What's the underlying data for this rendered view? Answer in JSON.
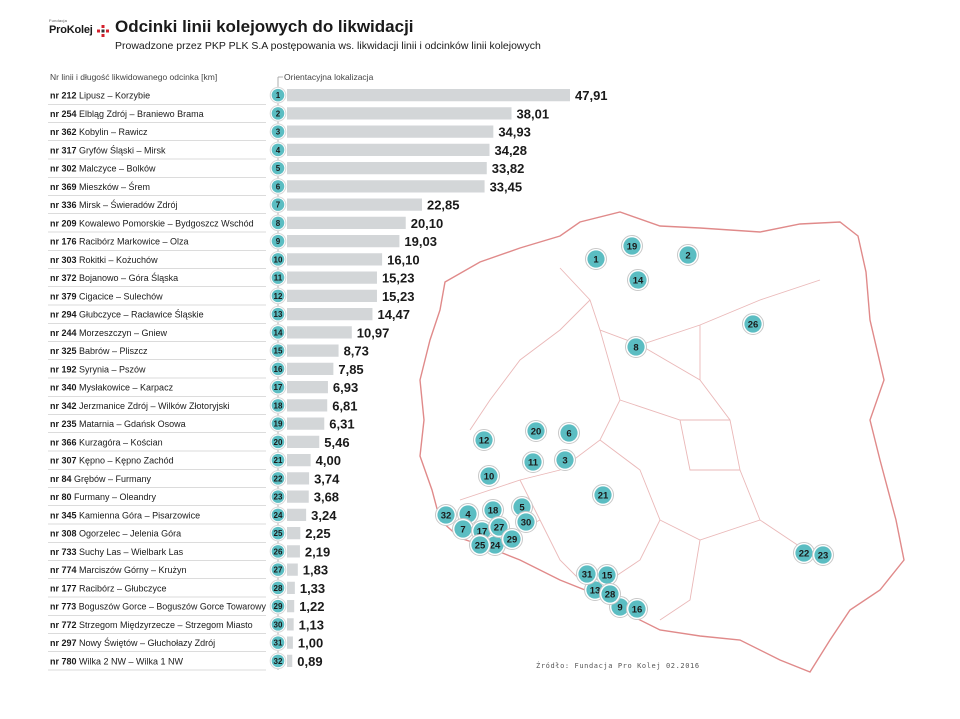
{
  "header": {
    "logo_small": "Fundacja",
    "logo_brand": "ProKolej",
    "title": "Odcinki linii kolejowych do likwidacji",
    "subtitle": "Prowadzone przez PKP PLK S.A postępowania ws. likwidacji linii i odcinków linii kolejowych"
  },
  "columns": {
    "left": "Nr linii i długość likwidowanego odcinka [km]",
    "right": "Orientacyjna lokalizacja"
  },
  "source": "Źródło: Fundacja Pro Kolej 02.2016",
  "colors": {
    "bar": "#d3d6d8",
    "marker_fill": "#5bbdc2",
    "marker_ring": "#d9d9d9",
    "map_outline": "#e08a8a",
    "brand_red": "#d4202c"
  },
  "chart_data": {
    "type": "bar",
    "orientation": "horizontal",
    "unit": "km",
    "xlim": [
      0,
      47.91
    ],
    "categories": [
      {
        "num": "nr 212",
        "name": "Lipusz – Korzybie"
      },
      {
        "num": "nr 254",
        "name": "Elbląg Zdrój – Braniewo Brama"
      },
      {
        "num": "nr 362",
        "name": "Kobylin – Rawicz"
      },
      {
        "num": "nr 317",
        "name": "Gryfów Śląski – Mirsk"
      },
      {
        "num": "nr 302",
        "name": "Malczyce – Bolków"
      },
      {
        "num": "nr 369",
        "name": "Mieszków – Śrem"
      },
      {
        "num": "nr 336",
        "name": "Mirsk – Świeradów Zdrój"
      },
      {
        "num": "nr 209",
        "name": "Kowalewo Pomorskie – Bydgoszcz Wschód"
      },
      {
        "num": "nr 176",
        "name": "Racibórz Markowice – Olza"
      },
      {
        "num": "nr 303",
        "name": "Rokitki – Kożuchów"
      },
      {
        "num": "nr 372",
        "name": "Bojanowo – Góra Śląska"
      },
      {
        "num": "nr 379",
        "name": "Cigacice – Sulechów"
      },
      {
        "num": "nr 294",
        "name": "Głubczyce – Racławice Śląskie"
      },
      {
        "num": "nr 244",
        "name": "Morzeszczyn – Gniew"
      },
      {
        "num": "nr 325",
        "name": "Babrów – Pliszcz"
      },
      {
        "num": "nr 192",
        "name": "Syrynia – Pszów"
      },
      {
        "num": "nr 340",
        "name": "Mysłakowice – Karpacz"
      },
      {
        "num": "nr 342",
        "name": "Jerzmanice Zdrój – Wilków Złotoryjski"
      },
      {
        "num": "nr 235",
        "name": "Matarnia – Gdańsk Osowa"
      },
      {
        "num": "nr 366",
        "name": "Kurzagóra – Kościan"
      },
      {
        "num": "nr 307",
        "name": "Kępno – Kępno Zachód"
      },
      {
        "num": "nr 84",
        "name": "Grębów – Furmany"
      },
      {
        "num": "nr 80",
        "name": "Furmany – Oleandry"
      },
      {
        "num": "nr 345",
        "name": "Kamienna Góra – Pisarzowice"
      },
      {
        "num": "nr 308",
        "name": "Ogorzelec – Jelenia Góra"
      },
      {
        "num": "nr 733",
        "name": "Suchy Las – Wielbark Las"
      },
      {
        "num": "nr 774",
        "name": "Marciszów Górny – Krużyn"
      },
      {
        "num": "nr 177",
        "name": "Racibórz – Głubczyce"
      },
      {
        "num": "nr 773",
        "name": "Boguszów Gorce – Boguszów Gorce Towarowy"
      },
      {
        "num": "nr 772",
        "name": "Strzegom Międzyrzecze – Strzegom Miasto"
      },
      {
        "num": "nr 297",
        "name": "Nowy Świętów – Głuchołazy Zdrój"
      },
      {
        "num": "nr 780",
        "name": "Wilka 2 NW – Wilka 1 NW"
      }
    ],
    "values": [
      47.91,
      38.01,
      34.93,
      34.28,
      33.82,
      33.45,
      22.85,
      20.1,
      19.03,
      16.1,
      15.23,
      15.23,
      14.47,
      10.97,
      8.73,
      7.85,
      6.93,
      6.81,
      6.31,
      5.46,
      4.0,
      3.74,
      3.68,
      3.24,
      2.25,
      2.19,
      1.83,
      1.33,
      1.22,
      1.13,
      1.0,
      0.89
    ],
    "value_labels": [
      "47,91",
      "38,01",
      "34,93",
      "34,28",
      "33,82",
      "33,45",
      "22,85",
      "20,10",
      "19,03",
      "16,10",
      "15,23",
      "15,23",
      "14,47",
      "10,97",
      "8,73",
      "7,85",
      "6,93",
      "6,81",
      "6,31",
      "5,46",
      "4,00",
      "3,74",
      "3,68",
      "3,24",
      "2,25",
      "2,19",
      "1,83",
      "1,33",
      "1,22",
      "1,13",
      "1,00",
      "0,89"
    ],
    "map_marker_labels": [
      "1",
      "2",
      "3",
      "4",
      "5",
      "6",
      "7",
      "8",
      "9",
      "10",
      "11",
      "12",
      "13",
      "14",
      "15",
      "16",
      "17",
      "18",
      "19",
      "20",
      "21",
      "22",
      "23",
      "24",
      "25",
      "26",
      "27",
      "28",
      "29",
      "30",
      "31",
      "32"
    ]
  }
}
